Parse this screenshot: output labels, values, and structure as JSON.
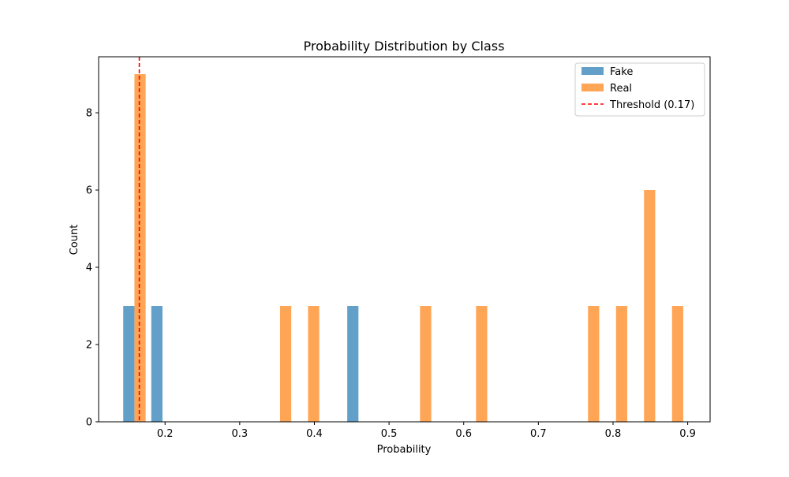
{
  "chart_data": {
    "type": "bar",
    "title": "Probability Distribution by Class",
    "xlabel": "Probability",
    "ylabel": "Count",
    "xlim": [
      0.111,
      0.93
    ],
    "ylim": [
      0,
      9.45
    ],
    "xticks": [
      0.2,
      0.3,
      0.4,
      0.5,
      0.6,
      0.7,
      0.8,
      0.9
    ],
    "yticks": [
      0,
      2,
      4,
      6,
      8
    ],
    "bin_width": 0.015,
    "series": [
      {
        "name": "Fake",
        "color": "#1f77b4",
        "opacity": 0.7,
        "x": [
          0.1515,
          0.189,
          0.4515
        ],
        "values": [
          3,
          3,
          3
        ]
      },
      {
        "name": "Real",
        "color": "#ff7f0e",
        "opacity": 0.7,
        "x": [
          0.1665,
          0.3615,
          0.399,
          0.549,
          0.624,
          0.774,
          0.8115,
          0.849,
          0.8865
        ],
        "values": [
          9,
          3,
          3,
          3,
          3,
          3,
          3,
          6,
          3
        ]
      }
    ],
    "threshold": {
      "label": "Threshold (0.17)",
      "value": 0.1655,
      "color": "#ff0000",
      "style": "dashed"
    },
    "legend": {
      "position": "top-right"
    },
    "grid": false
  }
}
